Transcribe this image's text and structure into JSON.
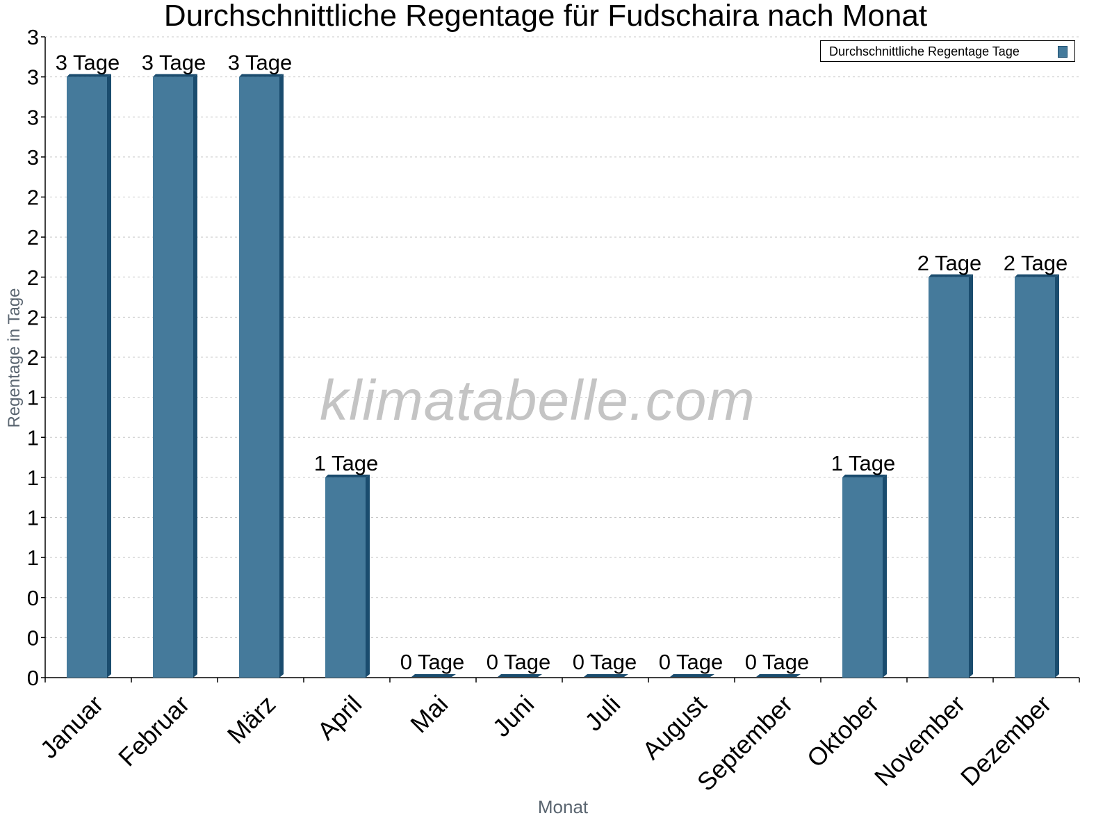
{
  "chart_data": {
    "type": "bar",
    "title": "Durchschnittliche Regentage für Fudschaira nach Monat",
    "xlabel": "Monat",
    "ylabel": "Regentage in Tage",
    "categories": [
      "Januar",
      "Februar",
      "März",
      "April",
      "Mai",
      "Juni",
      "Juli",
      "August",
      "September",
      "Oktober",
      "November",
      "Dezember"
    ],
    "series": [
      {
        "name": "Durchschnittliche Regentage Tage",
        "values": [
          3,
          3,
          3,
          1,
          0,
          0,
          0,
          0,
          0,
          1,
          2,
          2
        ],
        "data_labels": [
          "3 Tage",
          "3 Tage",
          "3 Tage",
          "1 Tage",
          "0 Tage",
          "0 Tage",
          "0 Tage",
          "0 Tage",
          "0 Tage",
          "1 Tage",
          "2 Tage",
          "2 Tage"
        ],
        "color": "#457a9b",
        "side_color": "#1a4c6e"
      }
    ],
    "ylim": [
      0,
      3.2
    ],
    "ytick_step": 0.2,
    "ytick_labels": [
      "0",
      "0",
      "0",
      "1",
      "1",
      "1",
      "1",
      "1",
      "2",
      "2",
      "2",
      "2",
      "2",
      "3",
      "3",
      "3",
      "3"
    ],
    "grid": true,
    "grid_style": "dotted horizontal",
    "legend_position": "top-right",
    "watermark": "klimatabelle.com"
  },
  "colors": {
    "bar": "#457a9b",
    "bar_side": "#1a4c6e",
    "grid": "#c8c8c8",
    "axis": "#000000",
    "axis_title": "#5a6570",
    "watermark": "#c4c4c4"
  }
}
